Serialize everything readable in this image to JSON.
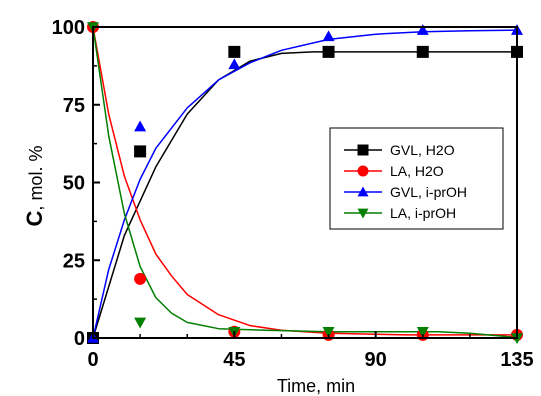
{
  "chart_data": {
    "type": "scatter",
    "title": "",
    "xlabel": "Time, min",
    "ylabel_main": "C",
    "ylabel_unit": ", mol. %",
    "xlim": [
      0,
      135
    ],
    "ylim": [
      0,
      100
    ],
    "xticks": [
      "0",
      "45",
      "90",
      "135"
    ],
    "yticks": [
      "0",
      "25",
      "50",
      "75",
      "100"
    ],
    "grid": false,
    "legend_position": "center-right",
    "series": [
      {
        "name": "GVL, H2O",
        "marker": "square",
        "color": "#000000",
        "points": [
          [
            0,
            0
          ],
          [
            15,
            60
          ],
          [
            45,
            92
          ],
          [
            75,
            92
          ],
          [
            105,
            92
          ],
          [
            135,
            92
          ]
        ],
        "fit": [
          [
            0,
            0
          ],
          [
            10,
            33
          ],
          [
            20,
            55
          ],
          [
            30,
            72
          ],
          [
            40,
            83
          ],
          [
            50,
            89
          ],
          [
            60,
            91.5
          ],
          [
            70,
            92
          ],
          [
            90,
            92
          ],
          [
            110,
            92
          ],
          [
            135,
            92
          ]
        ]
      },
      {
        "name": "LA, H2O",
        "marker": "circle",
        "color": "#ff0000",
        "points": [
          [
            0,
            100
          ],
          [
            15,
            19
          ],
          [
            45,
            2
          ],
          [
            75,
            1
          ],
          [
            105,
            1
          ],
          [
            135,
            1
          ]
        ],
        "fit": [
          [
            0,
            100
          ],
          [
            5,
            72
          ],
          [
            10,
            52
          ],
          [
            15,
            38
          ],
          [
            20,
            27
          ],
          [
            25,
            20
          ],
          [
            30,
            14
          ],
          [
            40,
            7.5
          ],
          [
            50,
            4
          ],
          [
            60,
            2.5
          ],
          [
            75,
            1.5
          ],
          [
            100,
            1
          ],
          [
            135,
            1
          ]
        ]
      },
      {
        "name": "GVL, i-prOH",
        "marker": "triangle-up",
        "color": "#0000ff",
        "points": [
          [
            0,
            0
          ],
          [
            15,
            68
          ],
          [
            45,
            88
          ],
          [
            75,
            97
          ],
          [
            105,
            99
          ],
          [
            135,
            99
          ]
        ],
        "fit": [
          [
            0,
            0
          ],
          [
            5,
            22
          ],
          [
            10,
            38
          ],
          [
            15,
            51
          ],
          [
            20,
            61
          ],
          [
            30,
            74
          ],
          [
            40,
            83
          ],
          [
            50,
            88.5
          ],
          [
            60,
            92.5
          ],
          [
            75,
            96
          ],
          [
            90,
            97.7
          ],
          [
            105,
            98.5
          ],
          [
            120,
            98.8
          ],
          [
            135,
            99
          ]
        ]
      },
      {
        "name": "LA, i-prOH",
        "marker": "triangle-down",
        "color": "#007f00",
        "points": [
          [
            0,
            100
          ],
          [
            15,
            5
          ],
          [
            45,
            2
          ],
          [
            75,
            2
          ],
          [
            105,
            2
          ],
          [
            135,
            0
          ]
        ],
        "fit": [
          [
            0,
            100
          ],
          [
            5,
            65
          ],
          [
            10,
            40
          ],
          [
            15,
            23
          ],
          [
            20,
            13
          ],
          [
            25,
            8
          ],
          [
            30,
            5
          ],
          [
            40,
            3
          ],
          [
            55,
            2.5
          ],
          [
            75,
            2
          ],
          [
            95,
            2
          ],
          [
            110,
            2
          ],
          [
            120,
            1.5
          ],
          [
            135,
            0.2
          ]
        ]
      }
    ]
  }
}
